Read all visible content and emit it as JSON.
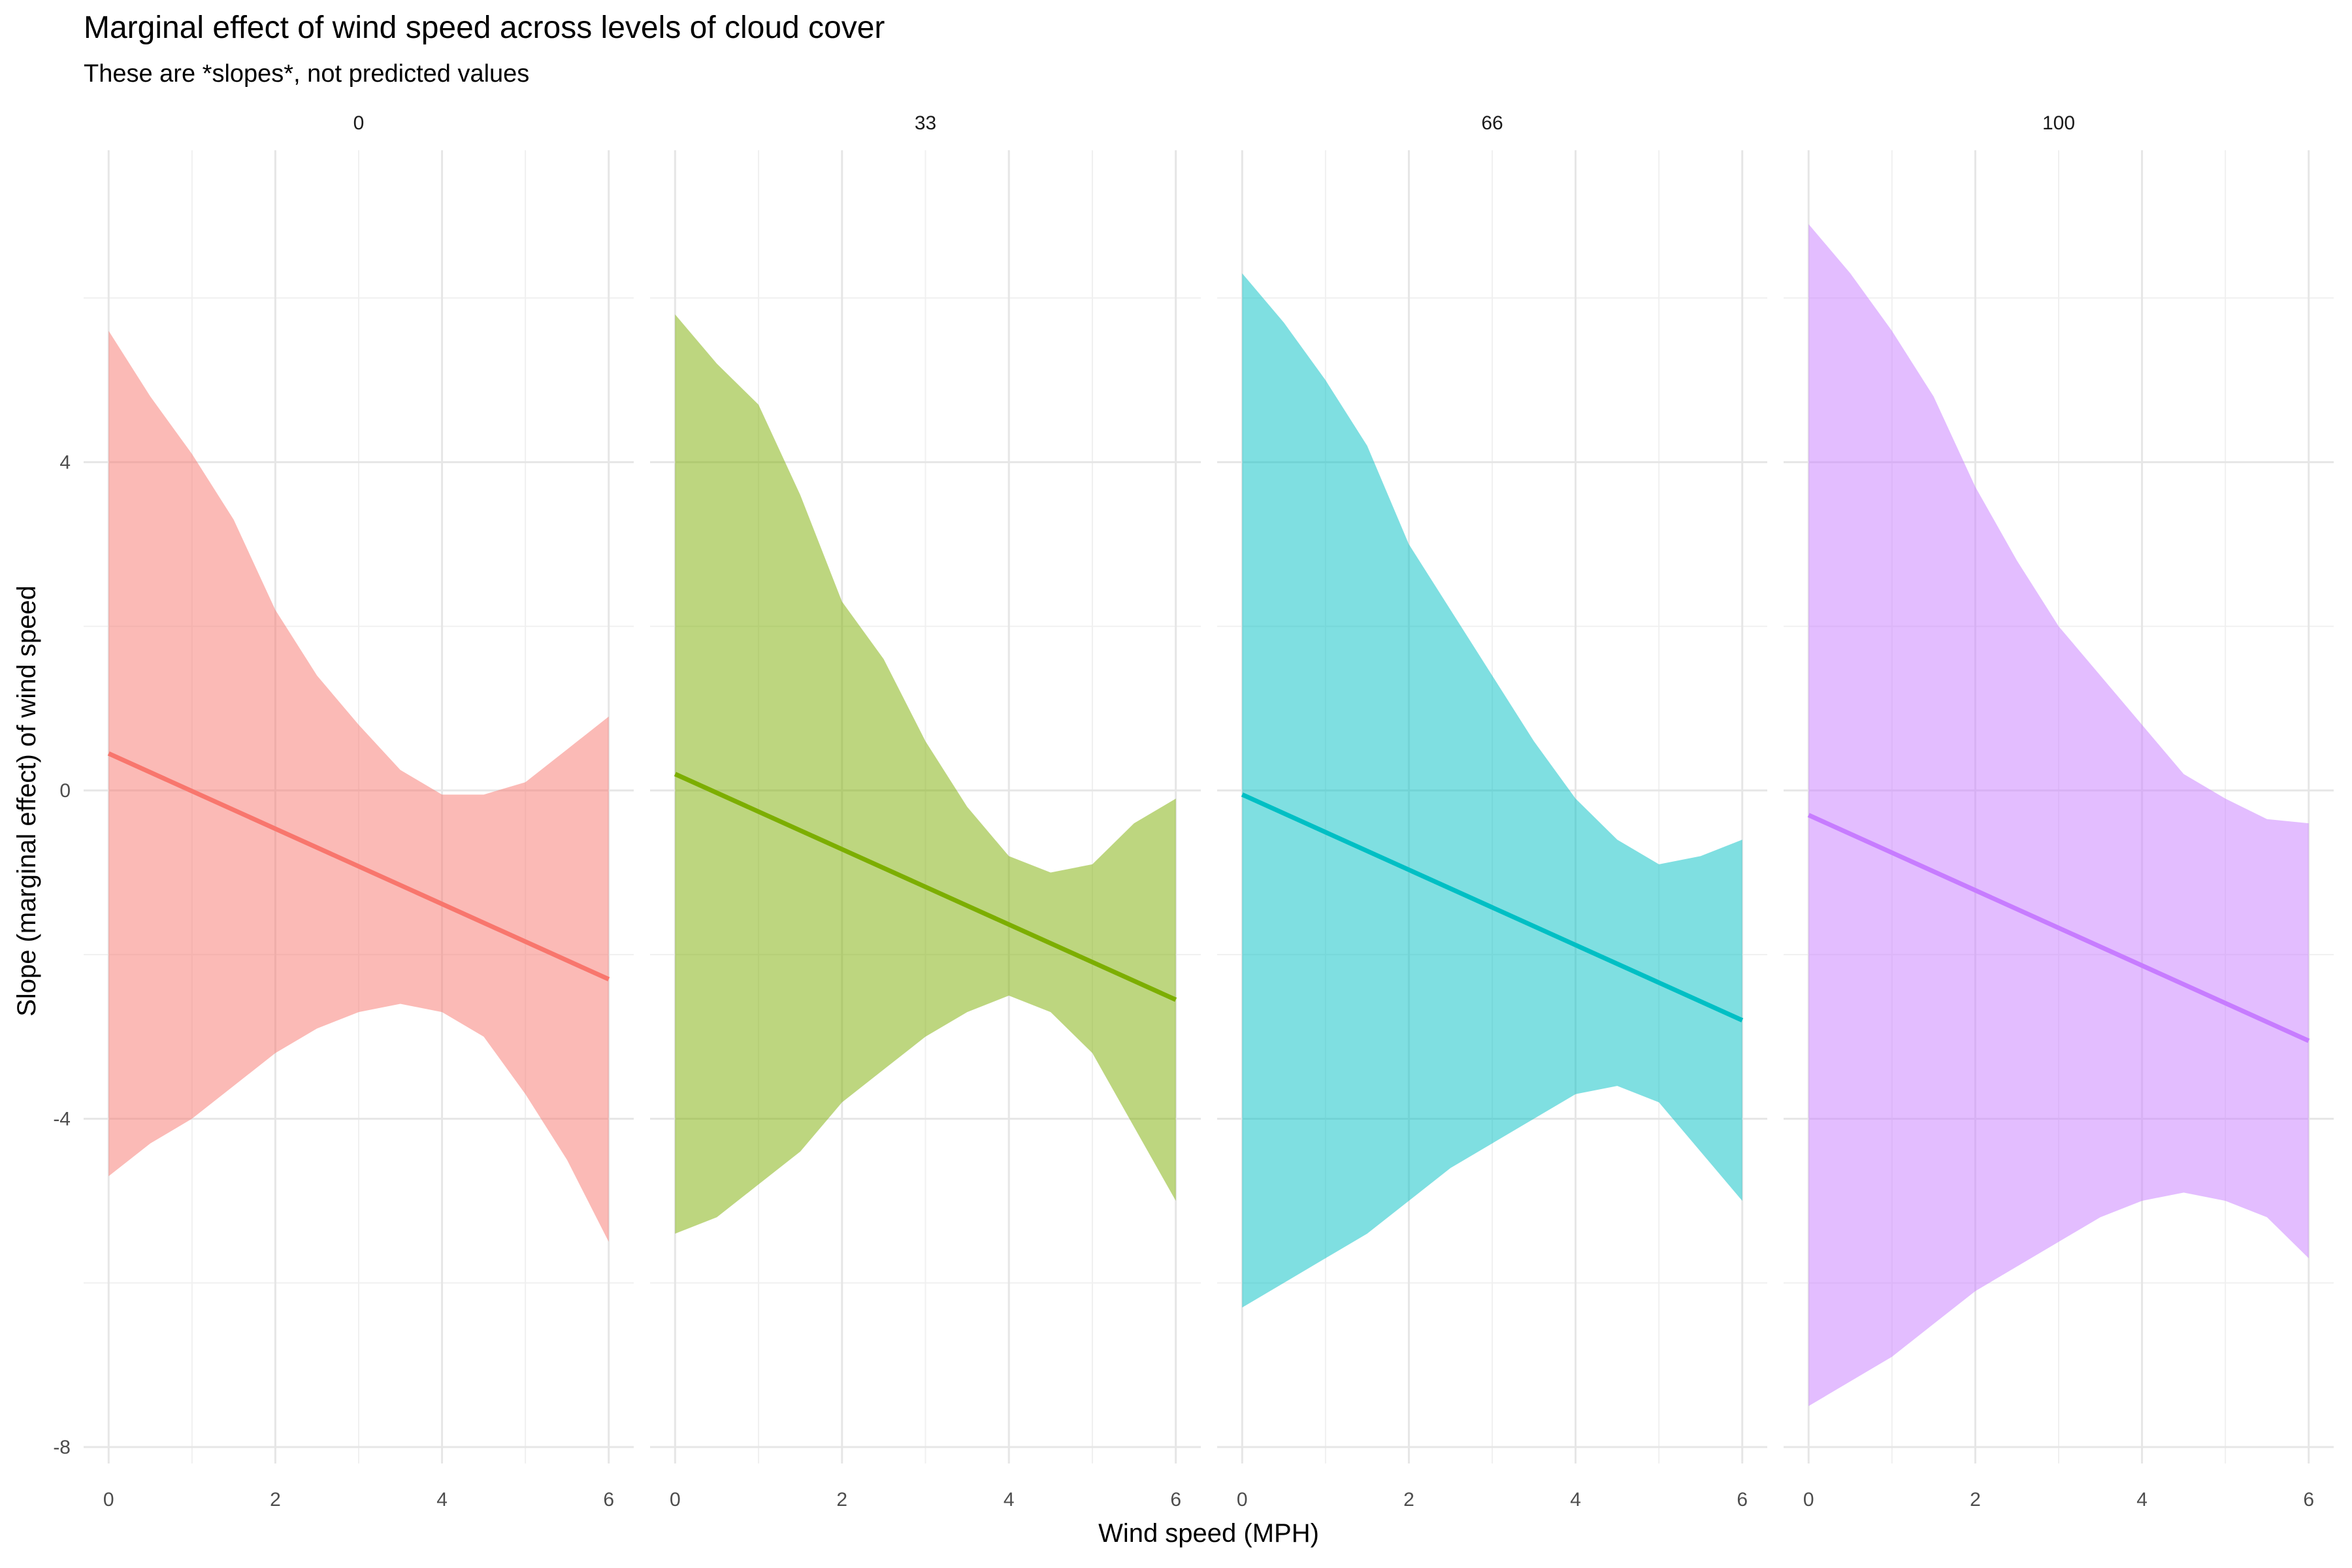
{
  "chart_data": {
    "type": "area",
    "title": "Marginal effect of wind speed across levels of cloud cover",
    "subtitle": "These are *slopes*, not predicted values",
    "xlabel": "Wind speed (MPH)",
    "ylabel": "Slope (marginal effect) of wind speed",
    "xlim": [
      -0.3,
      6.3
    ],
    "ylim": [
      -8.2,
      7.8
    ],
    "x_ticks": [
      0,
      2,
      4,
      6
    ],
    "x_tick_labels": [
      "0",
      "2",
      "4",
      "6"
    ],
    "y_ticks": [
      -8,
      -4,
      0,
      4
    ],
    "y_tick_labels": [
      "-8",
      "-4",
      "0",
      "4"
    ],
    "grid": true,
    "legend": "none",
    "facet_variable": "cloud cover",
    "x": [
      0,
      0.5,
      1,
      1.5,
      2,
      2.5,
      3,
      3.5,
      4,
      4.5,
      5,
      5.5,
      6
    ],
    "panels": [
      {
        "label": "0",
        "color": "#F8766D",
        "line_start": 0.45,
        "line_end": -2.3,
        "upper": [
          5.6,
          4.8,
          4.1,
          3.3,
          2.2,
          1.4,
          0.8,
          0.25,
          -0.05,
          -0.05,
          0.1,
          0.5,
          0.9
        ],
        "lower": [
          -4.7,
          -4.3,
          -4.0,
          -3.6,
          -3.2,
          -2.9,
          -2.7,
          -2.6,
          -2.7,
          -3.0,
          -3.7,
          -4.5,
          -5.5
        ]
      },
      {
        "label": "33",
        "color": "#7CAE00",
        "line_start": 0.2,
        "line_end": -2.55,
        "upper": [
          5.8,
          5.2,
          4.7,
          3.6,
          2.3,
          1.6,
          0.6,
          -0.2,
          -0.8,
          -1.0,
          -0.9,
          -0.4,
          -0.1
        ],
        "lower": [
          -5.4,
          -5.2,
          -4.8,
          -4.4,
          -3.8,
          -3.4,
          -3.0,
          -2.7,
          -2.5,
          -2.7,
          -3.2,
          -4.1,
          -5.0
        ]
      },
      {
        "label": "66",
        "color": "#00BFC4",
        "line_start": -0.05,
        "line_end": -2.8,
        "upper": [
          6.3,
          5.7,
          5.0,
          4.2,
          3.0,
          2.2,
          1.4,
          0.6,
          -0.1,
          -0.6,
          -0.9,
          -0.8,
          -0.6
        ],
        "lower": [
          -6.3,
          -6.0,
          -5.7,
          -5.4,
          -5.0,
          -4.6,
          -4.3,
          -4.0,
          -3.7,
          -3.6,
          -3.8,
          -4.4,
          -5.0
        ]
      },
      {
        "label": "100",
        "color": "#C77CFF",
        "line_start": -0.3,
        "line_end": -3.05,
        "upper": [
          6.9,
          6.3,
          5.6,
          4.8,
          3.7,
          2.8,
          2.0,
          1.4,
          0.8,
          0.2,
          -0.1,
          -0.35,
          -0.4
        ],
        "lower": [
          -7.5,
          -7.2,
          -6.9,
          -6.5,
          -6.1,
          -5.8,
          -5.5,
          -5.2,
          -5.0,
          -4.9,
          -5.0,
          -5.2,
          -5.7
        ]
      }
    ]
  }
}
